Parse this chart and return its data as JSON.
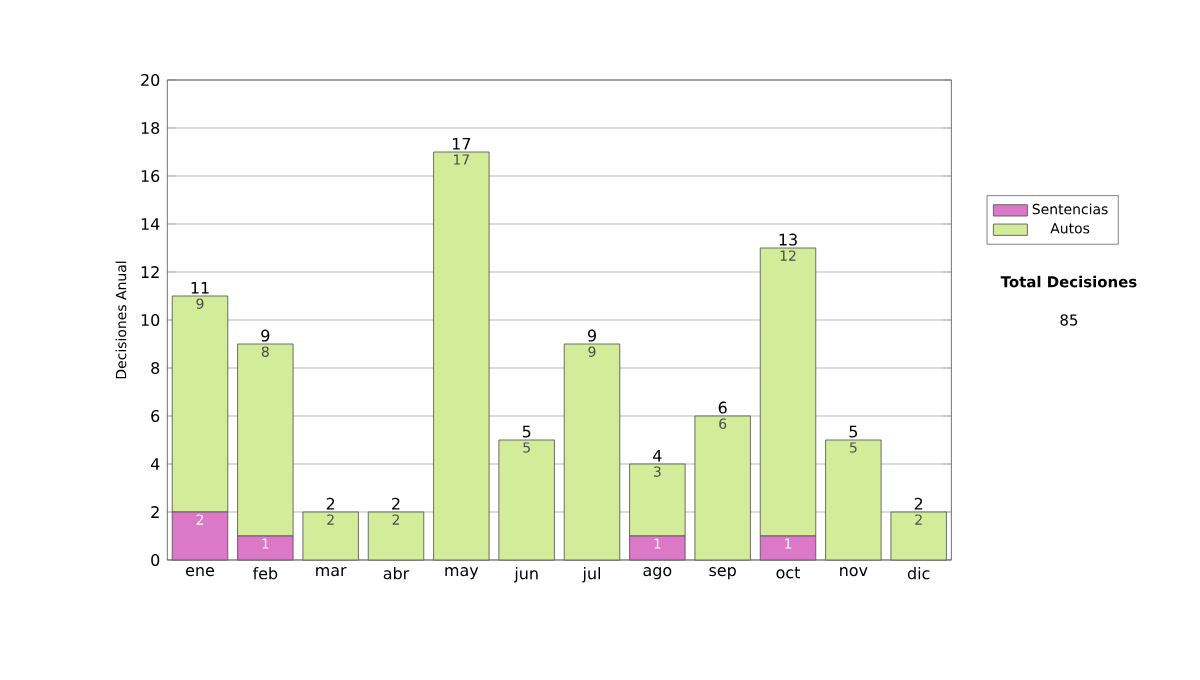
{
  "chart_data": {
    "type": "bar",
    "stacked": true,
    "ylabel": "Decisiones Anual",
    "categories": [
      "ene",
      "feb",
      "mar",
      "abr",
      "may",
      "jun",
      "jul",
      "ago",
      "sep",
      "oct",
      "nov",
      "dic"
    ],
    "series": [
      {
        "name": "Sentencias",
        "color": "#dc78c8",
        "values": [
          2,
          1,
          0,
          0,
          0,
          0,
          0,
          1,
          0,
          1,
          0,
          0
        ],
        "value_labels": [
          "2",
          "1",
          null,
          null,
          null,
          null,
          null,
          "1",
          null,
          "1",
          null,
          null
        ]
      },
      {
        "name": "Autos",
        "color": "#d2ec9a",
        "values": [
          9,
          8,
          2,
          2,
          17,
          5,
          9,
          3,
          6,
          12,
          5,
          2
        ],
        "value_labels": [
          "9",
          "8",
          "2",
          "2",
          "17",
          "5",
          "9",
          "3",
          "6",
          "12",
          "5",
          "2"
        ]
      }
    ],
    "totals": [
      "11",
      "9",
      "2",
      "2",
      "17",
      "5",
      "9",
      "4",
      "6",
      "13",
      "5",
      "2"
    ],
    "ylim": [
      0,
      20
    ],
    "yticks": [
      0,
      2,
      4,
      6,
      8,
      10,
      12,
      14,
      16,
      18,
      20
    ],
    "grid": "y",
    "legend": "right",
    "annotations": [
      "Total Decisiones",
      "85"
    ]
  }
}
